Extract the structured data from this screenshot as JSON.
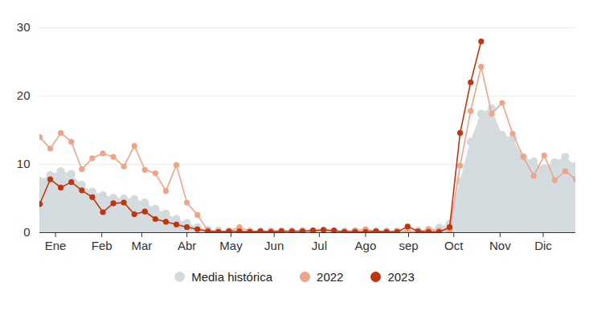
{
  "chart_data": {
    "type": "line",
    "x": [
      1,
      2,
      3,
      4,
      5,
      6,
      7,
      8,
      9,
      10,
      11,
      12,
      13,
      14,
      15,
      16,
      17,
      18,
      19,
      20,
      21,
      22,
      23,
      24,
      25,
      26,
      27,
      28,
      29,
      30,
      31,
      32,
      33,
      34,
      35,
      36,
      37,
      38,
      39,
      40,
      41,
      42,
      43,
      44,
      45,
      46,
      47,
      48,
      49,
      50,
      51,
      52
    ],
    "xlim": [
      1,
      52
    ],
    "xticks": [
      {
        "value": 2.5,
        "label": "Ene"
      },
      {
        "value": 6.9,
        "label": "Feb"
      },
      {
        "value": 10.7,
        "label": "Mar"
      },
      {
        "value": 15,
        "label": "Abr"
      },
      {
        "value": 19.2,
        "label": "May"
      },
      {
        "value": 23.3,
        "label": "Jun"
      },
      {
        "value": 27.6,
        "label": "Jul"
      },
      {
        "value": 32,
        "label": "Ago"
      },
      {
        "value": 36.1,
        "label": "sep"
      },
      {
        "value": 40.4,
        "label": "Oct"
      },
      {
        "value": 44.8,
        "label": "Nov"
      },
      {
        "value": 48.9,
        "label": "Dic"
      }
    ],
    "ylim": [
      0,
      30
    ],
    "yticks": [
      0,
      10,
      20,
      30
    ],
    "grid": true,
    "legend": "bottom",
    "series": [
      {
        "name": "Media histórica",
        "type": "area",
        "marker": "circle",
        "color": "#d3dadd",
        "values": [
          7.6,
          8.4,
          9.0,
          8.6,
          7.0,
          6.0,
          5.5,
          5.1,
          5.0,
          4.9,
          4.4,
          3.5,
          2.8,
          2.0,
          1.4,
          0.8,
          0.4,
          0.3,
          0.2,
          0.2,
          0.2,
          0.2,
          0.2,
          0.2,
          0.2,
          0.2,
          0.2,
          0.2,
          0.2,
          0.2,
          0.2,
          0.2,
          0.2,
          0.2,
          0.2,
          0.2,
          0.3,
          0.4,
          0.7,
          1.3,
          7.5,
          13.3,
          17.4,
          18.2,
          14.3,
          13.8,
          11.1,
          10.4,
          9.4,
          10.3,
          11.1,
          9.8
        ]
      },
      {
        "name": "2022",
        "type": "line",
        "marker": "circle",
        "color": "#eea487",
        "values": [
          14.0,
          12.3,
          14.6,
          13.3,
          9.3,
          10.9,
          11.6,
          11.1,
          9.7,
          12.7,
          9.2,
          8.7,
          6.1,
          9.9,
          4.4,
          2.6,
          0.3,
          0.2,
          0.2,
          0.8,
          0.2,
          0.2,
          0.2,
          0.3,
          0.2,
          0.3,
          0.3,
          0.4,
          0.2,
          0.2,
          0.3,
          0.5,
          0.2,
          0.2,
          0.2,
          0.2,
          0.1,
          0.5,
          0.3,
          0.3,
          9.8,
          17.8,
          24.3,
          17.4,
          19.0,
          14.5,
          11.1,
          8.3,
          11.3,
          7.7,
          9.0,
          7.8
        ]
      },
      {
        "name": "2023",
        "type": "line",
        "marker": "circle",
        "color": "#c0350f",
        "values": [
          4.2,
          7.8,
          6.6,
          7.4,
          6.2,
          5.2,
          3.0,
          4.3,
          4.4,
          2.7,
          3.1,
          2.0,
          1.6,
          1.2,
          0.8,
          0.5,
          0.2,
          0.1,
          0.2,
          0.2,
          0.1,
          0.2,
          0.1,
          0.2,
          0.2,
          0.2,
          0.3,
          0.4,
          0.3,
          0.1,
          0.1,
          0.1,
          0.2,
          0.1,
          0.1,
          0.9,
          0.2,
          0.1,
          0.1,
          0.8,
          14.6,
          22.0,
          28.0,
          null,
          null,
          null,
          null,
          null,
          null,
          null,
          null,
          null
        ]
      }
    ]
  }
}
